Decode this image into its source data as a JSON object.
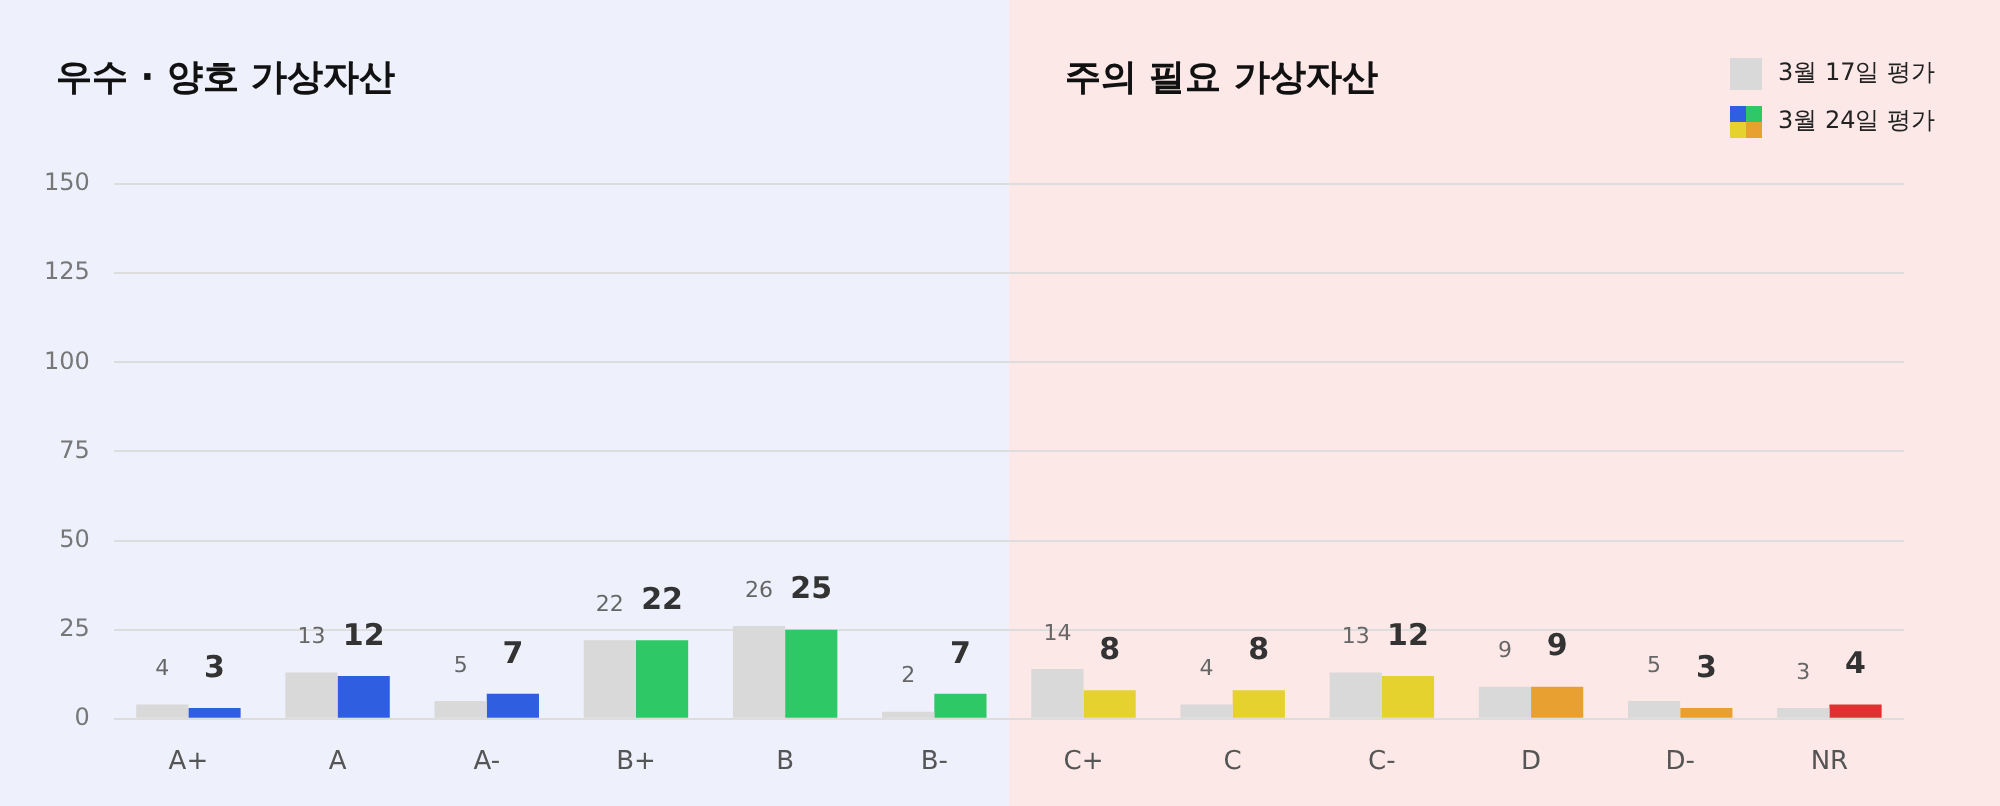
{
  "chart_data": {
    "type": "bar",
    "categories": [
      "A+",
      "A",
      "A-",
      "B+",
      "B",
      "B-",
      "C+",
      "C",
      "C-",
      "D",
      "D-",
      "NR"
    ],
    "series": [
      {
        "name": "3월 17일 평가",
        "color": "#d9d9d9",
        "values": [
          4,
          13,
          5,
          22,
          26,
          2,
          14,
          4,
          13,
          9,
          5,
          3
        ]
      },
      {
        "name": "3월 24일 평가",
        "colors": [
          "#2f5fe0",
          "#2f5fe0",
          "#2f5fe0",
          "#2ec866",
          "#2ec866",
          "#2ec866",
          "#e6d22e",
          "#e6d22e",
          "#e6d22e",
          "#e8a030",
          "#e8a030",
          "#e03030"
        ],
        "values": [
          3,
          12,
          7,
          22,
          25,
          7,
          8,
          8,
          12,
          9,
          3,
          4
        ]
      }
    ],
    "ylim": [
      0,
      150
    ],
    "yticks": [
      0,
      25,
      50,
      75,
      100,
      125,
      150
    ],
    "grid": "y",
    "legend": "top right",
    "data_labels": true,
    "bands": [
      {
        "axis": "x",
        "from": "A+",
        "to": "B-",
        "label": "우수 · 양호 가상자산",
        "color": "#eef0fc"
      },
      {
        "axis": "x",
        "from": "C+",
        "to": "NR",
        "label": "주의 필요 가상자산",
        "color": "#fde8e8"
      }
    ]
  }
}
